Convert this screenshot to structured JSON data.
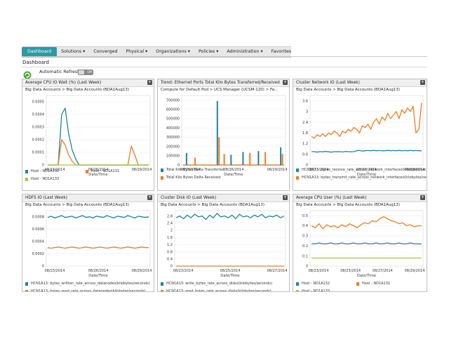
{
  "nav": {
    "items": [
      {
        "label": "Dashboard",
        "active": true
      },
      {
        "label": "Solutions ▾"
      },
      {
        "label": "Converged"
      },
      {
        "label": "Physical ▾"
      },
      {
        "label": "Organizations ▾"
      },
      {
        "label": "Policies ▾"
      },
      {
        "label": "Administration ▾"
      },
      {
        "label": "Favorites"
      }
    ]
  },
  "page": {
    "title": "Dashboard",
    "refresh_label": "Automatic Refresh",
    "toggle_state": "Off",
    "refresh_icon": "refresh-icon"
  },
  "menu_glyph": "▾",
  "colors": {
    "teal": "#1f82a6",
    "orange": "#ef7d22",
    "lime": "#a7c83c",
    "nav_active": "#2a9aa6"
  },
  "chart_data": [
    {
      "type": "line",
      "title": "Average CPU IO Wait (%) (Last Week)",
      "subtitle": "Big Data Accounts > Big Data Accounts (BDA1Aug13)",
      "xlabel": "Date/Time",
      "x_ticks": [
        "08/23/2014",
        "08/26/2014",
        "08/29/2014"
      ],
      "y_ticks": [
        "0",
        "0.0001",
        "0.0002",
        "0.0003",
        "0.0004",
        "0.0005"
      ],
      "ylim": [
        0,
        0.00055
      ],
      "series": [
        {
          "name": "Host - ND1A132",
          "color": "#1f82a6",
          "values": [
            0,
            0,
            0,
            0,
            0.0004,
            0.00045,
            0.00025,
            0.00012,
            5e-05,
            0,
            0,
            0,
            0,
            0,
            0,
            0,
            0,
            0,
            0,
            0,
            0,
            0,
            0,
            0,
            0,
            0,
            0,
            0,
            0,
            0
          ]
        },
        {
          "name": "Host - ND1A131",
          "color": "#ef7d22",
          "values": [
            0,
            0,
            0,
            0,
            0.0002,
            0.00016,
            8e-05,
            3e-05,
            0,
            0,
            0,
            0,
            0,
            0,
            0,
            0,
            0,
            0,
            0,
            0,
            0,
            0,
            0,
            0,
            0.00015,
            8e-05,
            0,
            0,
            0,
            0
          ]
        },
        {
          "name": "Host - ND1A133",
          "color": "#a7c83c",
          "values": [
            0,
            0,
            0,
            0,
            0,
            0,
            0,
            0,
            0,
            0,
            0,
            0,
            0,
            0,
            0,
            0,
            0,
            0,
            0,
            0,
            0,
            0,
            0,
            0,
            0,
            0,
            0,
            0,
            0,
            0
          ]
        }
      ],
      "legend_cols": 2
    },
    {
      "type": "line",
      "title": "Trend: Ethernet Ports Total Kilo Bytes Transferred/Received",
      "subtitle": "Compute for Default Pod > UCS Manager (UCSM-120) > Fa...",
      "xlabel": "Date/Time",
      "x_ticks": [
        "08/23/2014",
        "08/26/2014",
        "08/29/2014"
      ],
      "y_ticks": [
        "0",
        "100000",
        "200000",
        "300000",
        "400000",
        "500000",
        "600000",
        "700000"
      ],
      "ylim": [
        0,
        750000
      ],
      "series": [
        {
          "name": "Total Kilo Bytes Delta Transferred",
          "color": "#1f82a6",
          "values": [
            0,
            0,
            0,
            0,
            0,
            0,
            0,
            0,
            0,
            0,
            0,
            0,
            0,
            0,
            0,
            0,
            0,
            0,
            0,
            0,
            0,
            0,
            0,
            0,
            0,
            0,
            0,
            0,
            0,
            0,
            0,
            0,
            0,
            0,
            0,
            0,
            0,
            0,
            0,
            0,
            0,
            0,
            0,
            0,
            0,
            0,
            0,
            0,
            0,
            0,
            0,
            0,
            0,
            0,
            0,
            0,
            0,
            0,
            0,
            0
          ]
        },
        {
          "name": "Total Kilo Bytes Delta Received",
          "color": "#ef7d22",
          "values": [
            0,
            0,
            0,
            0,
            0,
            0,
            0,
            0,
            0,
            0,
            0,
            0,
            0,
            0,
            0,
            0,
            0,
            0,
            0,
            0,
            0,
            0,
            0,
            0,
            0,
            0,
            0,
            0,
            0,
            0,
            0,
            0,
            0,
            0,
            0,
            0,
            0,
            0,
            0,
            0,
            0,
            0,
            0,
            0,
            0,
            0,
            0,
            0,
            0,
            0,
            0,
            0,
            0,
            0,
            0,
            0,
            0,
            0,
            0,
            0
          ]
        }
      ],
      "spikes": [
        {
          "x": 2,
          "v": 130000,
          "series": 0
        },
        {
          "x": 7,
          "v": 80000,
          "series": 1
        },
        {
          "x": 20,
          "v": 690000,
          "series": 0
        },
        {
          "x": 21,
          "v": 300000,
          "series": 1
        },
        {
          "x": 24,
          "v": 120000,
          "series": 1
        },
        {
          "x": 28,
          "v": 110000,
          "series": 0
        },
        {
          "x": 35,
          "v": 140000,
          "series": 0
        },
        {
          "x": 39,
          "v": 130000,
          "series": 1
        },
        {
          "x": 44,
          "v": 150000,
          "series": 0
        },
        {
          "x": 48,
          "v": 140000,
          "series": 1
        },
        {
          "x": 57,
          "v": 190000,
          "series": 0
        },
        {
          "x": 58,
          "v": 120000,
          "series": 1
        }
      ],
      "legend_cols": 1
    },
    {
      "type": "line",
      "title": "Cluster Network IO (Last Week)",
      "subtitle": "Big Data Accounts > Big Data Accounts (BDA1Aug13)",
      "xlabel": "Date/Time",
      "x_ticks": [
        "08/23/2014",
        "08/27/2014",
        "08/29/2014"
      ],
      "y_ticks": [
        "0",
        "0.6",
        "1.2",
        "1.8",
        "2.4",
        "3",
        "3.6"
      ],
      "ylim": [
        0,
        3.9
      ],
      "series": [
        {
          "name": "HCN1A13: bytes_receive_rate_across_network_interfaces(kilobytes/seconds)",
          "color": "#1f82a6",
          "values": [
            0.75,
            0.75,
            0.72,
            0.75,
            0.74,
            0.76,
            0.74,
            0.72,
            0.75,
            0.74,
            0.75,
            0.73,
            0.76,
            0.75,
            0.74,
            0.75,
            0.8,
            0.82,
            0.78,
            0.8,
            0.81,
            0.8,
            0.82,
            0.8,
            0.81,
            0.79,
            0.8,
            0.82,
            0.8,
            0.81,
            0.8,
            0.82,
            0.8,
            0.81,
            0.8,
            0.82,
            0.8,
            0.81,
            0.8,
            0.8
          ]
        },
        {
          "name": "HCN1A13: bytes_transmit_rate_across_network_interfaces(kilobytes/seconds)",
          "color": "#ef7d22",
          "values": [
            1.6,
            1.5,
            1.7,
            1.6,
            1.75,
            1.6,
            1.8,
            1.7,
            1.9,
            1.8,
            1.6,
            1.9,
            1.8,
            2.0,
            1.9,
            2.1,
            2.0,
            1.8,
            2.2,
            2.1,
            2.3,
            2.0,
            2.4,
            2.6,
            2.3,
            2.7,
            2.5,
            2.9,
            2.6,
            2.8,
            3.0,
            2.6,
            3.1,
            2.9,
            3.2,
            3.0,
            3.3,
            1.8,
            2.0,
            3.5
          ]
        }
      ],
      "legend_cols": 1
    },
    {
      "type": "line",
      "title": "HDFS IO (Last Week)",
      "subtitle": "Big Data Accounts > Big Data Accounts (BDA1Aug13)",
      "xlabel": "Date/Time",
      "x_ticks": [
        "08/23/2014",
        "08/26/2014",
        "08/29/2014"
      ],
      "y_ticks": [
        "0",
        "0.0002",
        "0.0004",
        "0.0006",
        "0.0008"
      ],
      "ylim": [
        0,
        0.0009
      ],
      "series": [
        {
          "name": "HCN1A13: bytes_written_rate_across_datanodes(kilobytes/seconds)",
          "color": "#1f82a6",
          "values": [
            0.00079,
            0.00081,
            0.00078,
            0.0008,
            0.00082,
            0.00079,
            0.0008,
            0.00081,
            0.00078,
            0.0008,
            0.00082,
            0.00079,
            0.0008,
            0.00078,
            0.00081,
            0.0008,
            0.00079,
            0.00082,
            0.0008,
            0.00078,
            0.00081,
            0.0008,
            0.00079,
            0.00082,
            0.0008,
            0.00078,
            0.00081,
            0.0008,
            0.00079,
            0.0008
          ]
        },
        {
          "name": "HCN1A13: bytes_read_rate_across_datanodes(kilobytes/seconds)",
          "color": "#ef7d22",
          "values": [
            0.0003,
            0.00029,
            0.0003,
            0.00031,
            0.0003,
            0.00029,
            0.0003,
            0.00031,
            0.0003,
            0.00029,
            0.0003,
            0.00031,
            0.0003,
            0.00029,
            0.0003,
            0.00031,
            0.0003,
            0.00029,
            0.0003,
            0.00031,
            0.0003,
            0.00029,
            0.0003,
            0.00031,
            0.0003,
            0.00029,
            0.0003,
            0.00031,
            0.0003,
            0.0003
          ]
        }
      ],
      "legend_cols": 1
    },
    {
      "type": "line",
      "title": "Cluster Disk IO (Last Week)",
      "subtitle": "Big Data Accounts > Big Data Accounts (BDA1Aug13)",
      "xlabel": "Date/Time",
      "x_ticks": [
        "08/23/2014",
        "08/25/2014",
        "08/27/2014"
      ],
      "y_ticks": [
        "0",
        "0.4",
        "0.8",
        "1.2",
        "1.6",
        "2",
        "2.4",
        "2.8"
      ],
      "ylim": [
        0,
        3.1
      ],
      "series": [
        {
          "name": "HCN1A13: write_bytes_rate_across_disks(kilobytes/seconds)",
          "color": "#1f82a6",
          "values": [
            2.7,
            2.8,
            2.65,
            2.85,
            2.7,
            2.9,
            2.75,
            2.8,
            2.6,
            2.85,
            2.7,
            2.95,
            2.75,
            2.8,
            2.7,
            2.85,
            2.65,
            2.9,
            2.75,
            2.8,
            2.7,
            2.85,
            2.75,
            2.9,
            2.7,
            2.8,
            2.75,
            2.85,
            2.7,
            2.8
          ]
        },
        {
          "name": "HCN1A13: read_bytes_rate_across_disks(kilobytes/seconds)",
          "color": "#ef7d22",
          "values": [
            0,
            0,
            0,
            0,
            0,
            0,
            0,
            0,
            0,
            0,
            0,
            0,
            0,
            0,
            0,
            0,
            0,
            0,
            0,
            0,
            0,
            0,
            0,
            0,
            0,
            0,
            0,
            0,
            0,
            0
          ]
        }
      ],
      "legend_cols": 1
    },
    {
      "type": "line",
      "title": "Average CPU User (%) (Last Week)",
      "subtitle": "Big Data Accounts > Big Data Accounts (BDA1Aug13)",
      "xlabel": "Date/Time",
      "x_ticks": [
        "08/23/2014",
        "08/25/2014",
        "08/27/2014",
        "08/29/2014"
      ],
      "y_ticks": [
        "0",
        "0.1",
        "0.2",
        "0.3",
        "0.4",
        "0.5"
      ],
      "ylim": [
        0,
        0.55
      ],
      "series": [
        {
          "name": "Host - ND1A132",
          "color": "#1f82a6",
          "values": [
            0.22,
            0.22,
            0.23,
            0.22,
            0.22,
            0.23,
            0.22,
            0.22,
            0.23,
            0.22,
            0.22,
            0.23,
            0.22,
            0.22,
            0.23,
            0.22,
            0.22,
            0.23,
            0.22,
            0.22,
            0.23,
            0.22,
            0.22,
            0.23,
            0.22,
            0.22,
            0.23,
            0.22,
            0.22,
            0.22
          ]
        },
        {
          "name": "Host - ND1A131",
          "color": "#ef7d22",
          "values": [
            0.4,
            0.38,
            0.42,
            0.37,
            0.41,
            0.39,
            0.4,
            0.38,
            0.41,
            0.39,
            0.42,
            0.4,
            0.38,
            0.41,
            0.43,
            0.42,
            0.45,
            0.44,
            0.47,
            0.49,
            0.47,
            0.45,
            0.44,
            0.42,
            0.43,
            0.4,
            0.41,
            0.39,
            0.4,
            0.4
          ]
        },
        {
          "name": "Host - ND1A133",
          "color": "#a7c83c",
          "values": [
            0.08,
            0.08,
            0.08,
            0.08,
            0.08,
            0.08,
            0.08,
            0.08,
            0.08,
            0.08,
            0.08,
            0.08,
            0.08,
            0.08,
            0.08,
            0.08,
            0.08,
            0.08,
            0.08,
            0.08,
            0.08,
            0.08,
            0.08,
            0.08,
            0.08,
            0.08,
            0.08,
            0.08,
            0.08,
            0.08
          ]
        }
      ],
      "legend_cols": 2
    }
  ]
}
